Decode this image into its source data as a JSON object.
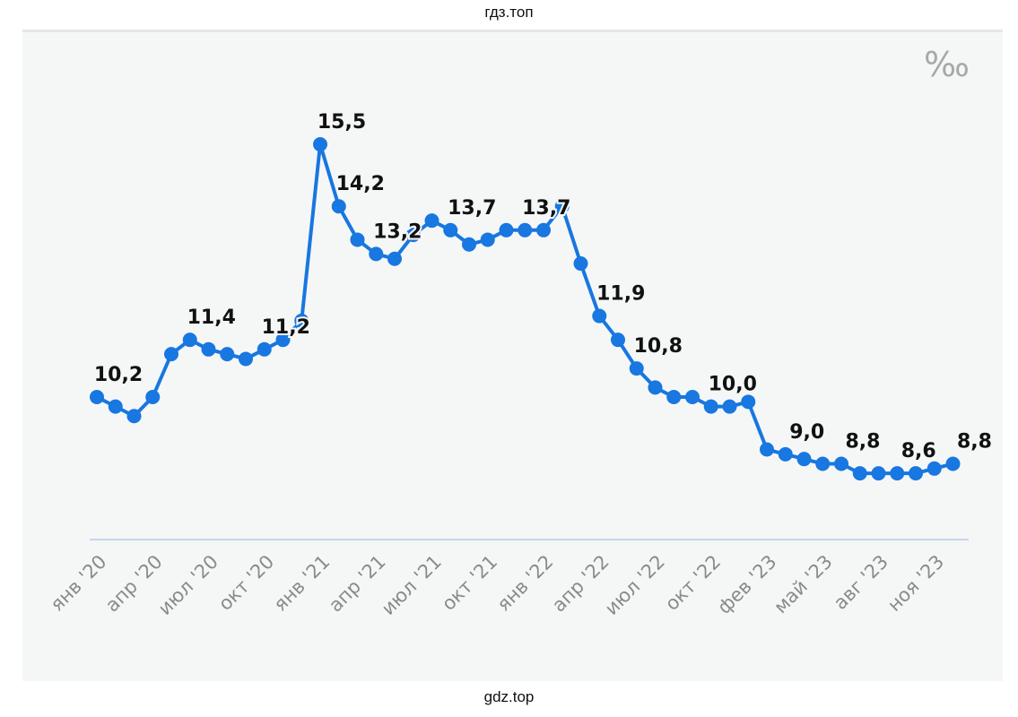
{
  "watermark_top": "гдз.топ",
  "watermark_bottom": "gdz.top",
  "chart_data": {
    "type": "line",
    "unit_label": "‰",
    "color": "#1877e0",
    "ylim": [
      7,
      16.5
    ],
    "grid": false,
    "values": [
      10.2,
      10.0,
      9.8,
      10.2,
      11.1,
      11.4,
      11.2,
      11.1,
      11.0,
      11.2,
      11.4,
      11.8,
      15.5,
      14.2,
      13.5,
      13.2,
      13.1,
      13.6,
      13.9,
      13.7,
      13.4,
      13.5,
      13.7,
      13.7,
      13.7,
      14.2,
      13.0,
      11.9,
      11.4,
      10.8,
      10.4,
      10.2,
      10.2,
      10.0,
      10.0,
      10.1,
      9.1,
      9.0,
      8.9,
      8.8,
      8.8,
      8.6,
      8.6,
      8.6,
      8.6,
      8.7,
      8.8
    ],
    "data_labels": [
      {
        "index": 0,
        "text": "10,2"
      },
      {
        "index": 5,
        "text": "11,4"
      },
      {
        "index": 9,
        "text": "11,2"
      },
      {
        "index": 12,
        "text": "15,5"
      },
      {
        "index": 13,
        "text": "14,2"
      },
      {
        "index": 15,
        "text": "13,2"
      },
      {
        "index": 19,
        "text": "13,7"
      },
      {
        "index": 23,
        "text": "13,7"
      },
      {
        "index": 27,
        "text": "11,9"
      },
      {
        "index": 29,
        "text": "10,8"
      },
      {
        "index": 33,
        "text": "10,0"
      },
      {
        "index": 37,
        "text": "9,0"
      },
      {
        "index": 40,
        "text": "8,8"
      },
      {
        "index": 43,
        "text": "8,6"
      },
      {
        "index": 46,
        "text": "8,8"
      }
    ],
    "tick_labels": [
      {
        "index": 0,
        "text": "янв '20"
      },
      {
        "index": 3,
        "text": "апр '20"
      },
      {
        "index": 6,
        "text": "июл '20"
      },
      {
        "index": 9,
        "text": "окт '20"
      },
      {
        "index": 12,
        "text": "янв '21"
      },
      {
        "index": 15,
        "text": "апр '21"
      },
      {
        "index": 18,
        "text": "июл '21"
      },
      {
        "index": 21,
        "text": "окт '21"
      },
      {
        "index": 24,
        "text": "янв '22"
      },
      {
        "index": 27,
        "text": "апр '22"
      },
      {
        "index": 30,
        "text": "июл '22"
      },
      {
        "index": 33,
        "text": "окт '22"
      },
      {
        "index": 36,
        "text": "фев '23"
      },
      {
        "index": 39,
        "text": "май '23"
      },
      {
        "index": 42,
        "text": "авг '23"
      },
      {
        "index": 45,
        "text": "ноя '23"
      }
    ]
  }
}
